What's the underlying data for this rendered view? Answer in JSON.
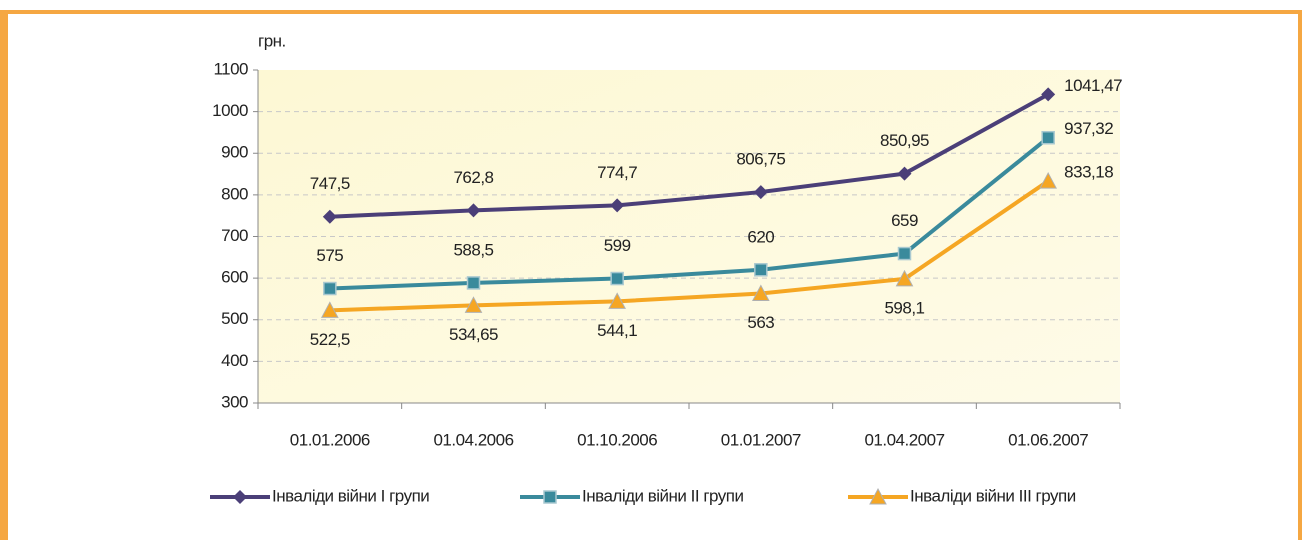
{
  "chart_data": {
    "type": "line",
    "y_label": "грн.",
    "categories": [
      "01.01.2006",
      "01.04.2006",
      "01.10.2006",
      "01.01.2007",
      "01.04.2007",
      "01.06.2007"
    ],
    "series": [
      {
        "name": "Інваліди війни І групи",
        "color": "#4b3f78",
        "marker": "diamond",
        "values": [
          747.5,
          762.8,
          774.7,
          806.75,
          850.95,
          1041.47
        ],
        "value_labels": [
          "747,5",
          "762,8",
          "774,7",
          "806,75",
          "850,95",
          "1041,47"
        ]
      },
      {
        "name": "Інваліди війни ІІ групи",
        "color": "#3a8a9c",
        "marker": "square",
        "values": [
          575,
          588.5,
          599,
          620,
          659,
          937.32
        ],
        "value_labels": [
          "575",
          "588,5",
          "599",
          "620",
          "659",
          "937,32"
        ]
      },
      {
        "name": "Інваліди війни ІІІ групи",
        "color": "#f5a623",
        "marker": "triangle",
        "values": [
          522.5,
          534.65,
          544.1,
          563,
          598.1,
          833.18
        ],
        "value_labels": [
          "522,5",
          "534,65",
          "544,1",
          "563",
          "598,1",
          "833,18"
        ]
      }
    ],
    "ylim": [
      300,
      1100
    ],
    "yticks": [
      300,
      400,
      500,
      600,
      700,
      800,
      900,
      1000,
      1100
    ],
    "grid": true
  }
}
